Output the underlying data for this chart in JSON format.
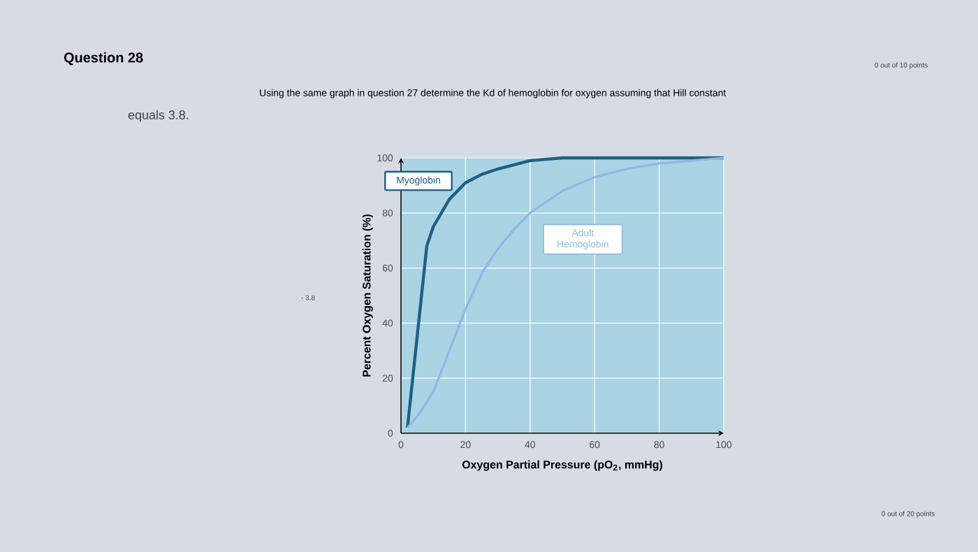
{
  "chart_data": {
    "type": "line",
    "title": "Question 28",
    "subtitle": "Using the same graph in question 27 determine the Kd of hemoglobin for oxygen assuming that Hill constant",
    "annotations": [
      "equals 3.8.",
      "0 out of 10 points",
      "- 3.8",
      "0 out of 20 points"
    ],
    "xlabel": "Oxygen Partial Pressure (pO$_{2}$, mmHg)",
    "ylabel": "Percent Oxygen Saturation (%)",
    "xlim": [
      0,
      100
    ],
    "ylim": [
      0,
      100
    ],
    "xticks": [
      0,
      20,
      40,
      60,
      80,
      100
    ],
    "yticks": [
      0,
      20,
      40,
      60,
      80,
      100
    ],
    "grid": true,
    "legend": false,
    "marker": "none",
    "line_style": "solid",
    "series": [
      {
        "name": "Myoglobin",
        "color": "#1f5f86",
        "x": [
          2,
          5,
          8,
          10,
          15,
          20,
          25,
          30,
          40,
          50,
          60,
          80,
          100
        ],
        "values": [
          2,
          35,
          68,
          75,
          85,
          91,
          94,
          96,
          99,
          100,
          100,
          100,
          100
        ]
      },
      {
        "name": "Adult Hemoglobin",
        "color": "#8fb8e6",
        "x": [
          2,
          5,
          10,
          15,
          20,
          25,
          30,
          35,
          40,
          50,
          60,
          70,
          80,
          90,
          100
        ],
        "values": [
          2,
          6,
          15,
          30,
          45,
          58,
          67,
          74,
          80,
          88,
          93,
          96,
          98,
          99,
          100
        ]
      }
    ]
  }
}
